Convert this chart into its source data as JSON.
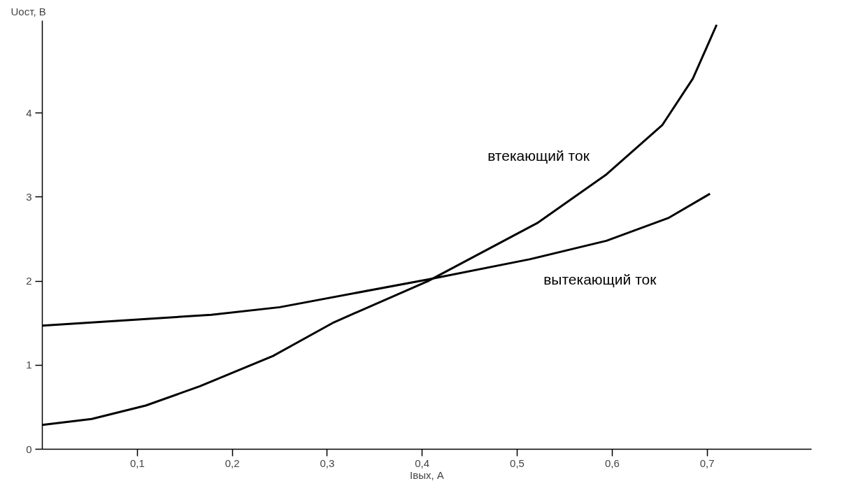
{
  "chart_data": {
    "type": "line",
    "xlabel": "Iвых, А",
    "ylabel": "Uост, В",
    "xlim": [
      0,
      0.81
    ],
    "ylim": [
      0,
      5.1
    ],
    "xticks": [
      {
        "value": 0.1,
        "label": "0,1"
      },
      {
        "value": 0.2,
        "label": "0,2"
      },
      {
        "value": 0.3,
        "label": "0,3"
      },
      {
        "value": 0.4,
        "label": "0,4"
      },
      {
        "value": 0.5,
        "label": "0,5"
      },
      {
        "value": 0.6,
        "label": "0,6"
      },
      {
        "value": 0.7,
        "label": "0,7"
      }
    ],
    "yticks": [
      0,
      1,
      2,
      3,
      4
    ],
    "grid": false,
    "series": [
      {
        "name": "втекающий ток",
        "color": "#000000",
        "x": [
          0,
          0.052,
          0.109,
          0.166,
          0.243,
          0.307,
          0.406,
          0.521,
          0.594,
          0.653,
          0.685,
          0.71
        ],
        "values": [
          0.29,
          0.36,
          0.52,
          0.75,
          1.11,
          1.51,
          2.0,
          2.69,
          3.27,
          3.86,
          4.41,
          5.05
        ]
      },
      {
        "name": "вытекающий ток",
        "color": "#000000",
        "x": [
          0,
          0.178,
          0.25,
          0.406,
          0.513,
          0.594,
          0.659,
          0.703
        ],
        "values": [
          1.47,
          1.6,
          1.69,
          2.02,
          2.26,
          2.48,
          2.75,
          3.04
        ]
      }
    ]
  }
}
